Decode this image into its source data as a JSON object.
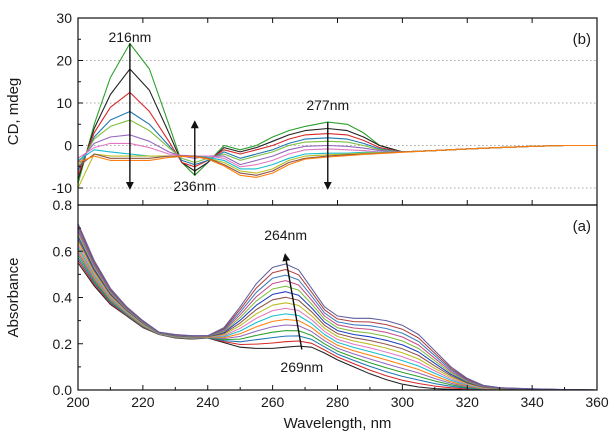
{
  "chart_data": [
    {
      "panel": "(b)",
      "type": "line",
      "title": "",
      "xlabel": "",
      "ylabel": "CD, mdeg",
      "xlim": [
        200,
        360
      ],
      "ylim": [
        -14,
        30
      ],
      "x_ticks": [
        200,
        220,
        240,
        260,
        280,
        300,
        320,
        340,
        360
      ],
      "y_ticks": [
        -10,
        0,
        10,
        20,
        30
      ],
      "grid": "horizontal dotted",
      "legend": "none",
      "x": [
        200,
        205,
        210,
        216,
        222,
        228,
        232,
        236,
        240,
        245,
        250,
        255,
        260,
        265,
        270,
        277,
        283,
        288,
        293,
        300,
        310,
        320,
        330,
        340,
        350,
        360
      ],
      "series": [
        {
          "color": "#2ca02c",
          "values": [
            -9,
            5,
            16,
            24,
            18,
            5,
            -4,
            -7,
            -4,
            0,
            -1,
            0,
            2,
            3.5,
            4.5,
            5.5,
            5,
            3,
            0,
            -1.5,
            -1.2,
            -0.8,
            -0.5,
            -0.2,
            0,
            0
          ]
        },
        {
          "color": "#222222",
          "values": [
            -8,
            4,
            12,
            18,
            13,
            3,
            -4,
            -6,
            -4,
            -0.5,
            -1.5,
            -0.5,
            1,
            2.5,
            3.5,
            4,
            3.5,
            2,
            0,
            -1.5,
            -1.2,
            -0.8,
            -0.5,
            -0.2,
            0,
            0
          ]
        },
        {
          "color": "#d62728",
          "values": [
            -7,
            3,
            9,
            12.5,
            8,
            1,
            -4,
            -5,
            -3.5,
            -1,
            -2,
            -1,
            0,
            1.5,
            2.5,
            2.8,
            2.5,
            1.2,
            -0.5,
            -1.5,
            -1.2,
            -0.8,
            -0.5,
            -0.2,
            0,
            0
          ]
        },
        {
          "color": "#1f77b4",
          "values": [
            -6,
            2,
            6,
            8,
            5,
            0,
            -3.5,
            -4.5,
            -3.5,
            -1.5,
            -3,
            -2,
            -1,
            0.5,
            1.5,
            1.8,
            1.5,
            0.5,
            -0.8,
            -1.5,
            -1.2,
            -0.8,
            -0.5,
            -0.2,
            0,
            0
          ]
        },
        {
          "color": "#7fbf3f",
          "values": [
            -5,
            1.5,
            4.5,
            6,
            3.5,
            -0.5,
            -3,
            -4,
            -3,
            -2,
            -3.5,
            -2.5,
            -1.5,
            0,
            0.8,
            1,
            0.8,
            0,
            -1,
            -1.5,
            -1.2,
            -0.8,
            -0.5,
            -0.2,
            0,
            0
          ]
        },
        {
          "color": "#9467bd",
          "values": [
            -4,
            0.5,
            2,
            2.5,
            1,
            -1.5,
            -2.5,
            -3,
            -2.5,
            -2.5,
            -4.5,
            -3.5,
            -2.5,
            -1,
            -0.2,
            0,
            -0.2,
            -0.6,
            -1.2,
            -1.5,
            -1.2,
            -0.8,
            -0.5,
            -0.2,
            0,
            0
          ]
        },
        {
          "color": "#e377c2",
          "values": [
            -3,
            -0.5,
            0.5,
            0.5,
            -0.5,
            -2,
            -2.3,
            -2.5,
            -2.5,
            -3,
            -5,
            -4.5,
            -3.5,
            -2,
            -1,
            -0.8,
            -1,
            -1.2,
            -1.5,
            -1.5,
            -1.2,
            -0.8,
            -0.5,
            -0.2,
            0,
            0
          ]
        },
        {
          "color": "#17becf",
          "values": [
            -3.5,
            -1,
            -1.5,
            -2,
            -2.5,
            -2.5,
            -2.5,
            -2.5,
            -2.8,
            -3.5,
            -5.5,
            -5.5,
            -4.5,
            -3,
            -2,
            -1.8,
            -1.8,
            -1.6,
            -1.6,
            -1.5,
            -1.2,
            -0.8,
            -0.5,
            -0.2,
            0,
            0
          ]
        },
        {
          "color": "#bcbd22",
          "values": [
            -10,
            -2,
            -2.5,
            -2.5,
            -2.5,
            -2.5,
            -2.5,
            -2.5,
            -3,
            -4,
            -6,
            -6.5,
            -5.5,
            -3.5,
            -2.5,
            -2.2,
            -2,
            -1.8,
            -1.7,
            -1.5,
            -1.2,
            -0.8,
            -0.5,
            -0.2,
            0,
            0
          ]
        },
        {
          "color": "#8c564b",
          "values": [
            -5,
            -2,
            -3,
            -3,
            -3,
            -2.5,
            -2.5,
            -2.5,
            -3,
            -4.5,
            -6.5,
            -7,
            -6,
            -4,
            -3,
            -2.5,
            -2.2,
            -2,
            -1.8,
            -1.5,
            -1.2,
            -0.8,
            -0.5,
            -0.2,
            0,
            0
          ]
        },
        {
          "color": "#ff7f0e",
          "values": [
            -4,
            -2.5,
            -3.5,
            -3.5,
            -3.5,
            -2.8,
            -2.6,
            -2.6,
            -3.2,
            -4.8,
            -7,
            -7.5,
            -6.5,
            -4.5,
            -3.2,
            -2.7,
            -2.4,
            -2.1,
            -1.9,
            -1.6,
            -1.2,
            -0.8,
            -0.5,
            -0.2,
            0,
            0
          ]
        }
      ],
      "annotations": [
        {
          "text": "216nm",
          "x": 216,
          "y": 25.5
        },
        {
          "text": "277nm",
          "x": 277,
          "y": 9.5
        },
        {
          "text": "236nm",
          "x": 236,
          "y": -9.5
        }
      ],
      "arrows": [
        {
          "x": 216,
          "from": 24,
          "to": -9.5
        },
        {
          "x": 236,
          "from": -7,
          "to": 5
        },
        {
          "x": 277,
          "from": 5.5,
          "to": -9.5
        }
      ],
      "tag": "(b)"
    },
    {
      "panel": "(a)",
      "type": "line",
      "title": "",
      "xlabel": "Wavelength, nm",
      "ylabel": "Absorbance",
      "xlim": [
        200,
        360
      ],
      "ylim": [
        0,
        0.8
      ],
      "x_ticks": [
        200,
        220,
        240,
        260,
        280,
        300,
        320,
        340,
        360
      ],
      "y_ticks": [
        0.0,
        0.2,
        0.4,
        0.6,
        0.8
      ],
      "grid": "none",
      "legend": "none",
      "x": [
        200,
        205,
        210,
        215,
        220,
        225,
        230,
        235,
        240,
        245,
        250,
        255,
        260,
        264,
        268,
        272,
        276,
        280,
        285,
        290,
        295,
        300,
        305,
        310,
        315,
        320,
        325,
        330,
        340,
        350,
        360
      ],
      "peak_series_values": [
        0.72,
        0.56,
        0.44,
        0.36,
        0.3,
        0.25,
        0.24,
        0.235,
        0.235,
        0.27,
        0.36,
        0.46,
        0.53,
        0.545,
        0.52,
        0.44,
        0.36,
        0.32,
        0.31,
        0.31,
        0.3,
        0.28,
        0.24,
        0.17,
        0.1,
        0.05,
        0.02,
        0.01,
        0.005,
        0.002,
        0
      ],
      "base_series_values": [
        0.55,
        0.45,
        0.37,
        0.32,
        0.27,
        0.24,
        0.225,
        0.22,
        0.225,
        0.205,
        0.185,
        0.18,
        0.18,
        0.185,
        0.19,
        0.185,
        0.16,
        0.13,
        0.1,
        0.07,
        0.045,
        0.025,
        0.013,
        0.006,
        0.003,
        0.001,
        0,
        0,
        0,
        0,
        0
      ],
      "series_count": 16,
      "series_colors": [
        "#222222",
        "#d62728",
        "#1f77b4",
        "#2ca02c",
        "#9467bd",
        "#ff7f0e",
        "#17becf",
        "#e377c2",
        "#bcbd22",
        "#8c564b",
        "#1f3fbf",
        "#7fbf3f",
        "#c44e8a",
        "#3f7fbf",
        "#b23f3f",
        "#5f5f9f"
      ],
      "annotations": [
        {
          "text": "264nm",
          "x": 264,
          "y": 0.67
        },
        {
          "text": "269nm",
          "x": 269,
          "y": 0.1
        }
      ],
      "arrows": [
        {
          "x_from": 269,
          "y_from": 0.175,
          "x_to": 264,
          "y_to": 0.575
        }
      ],
      "tag": "(a)"
    }
  ]
}
